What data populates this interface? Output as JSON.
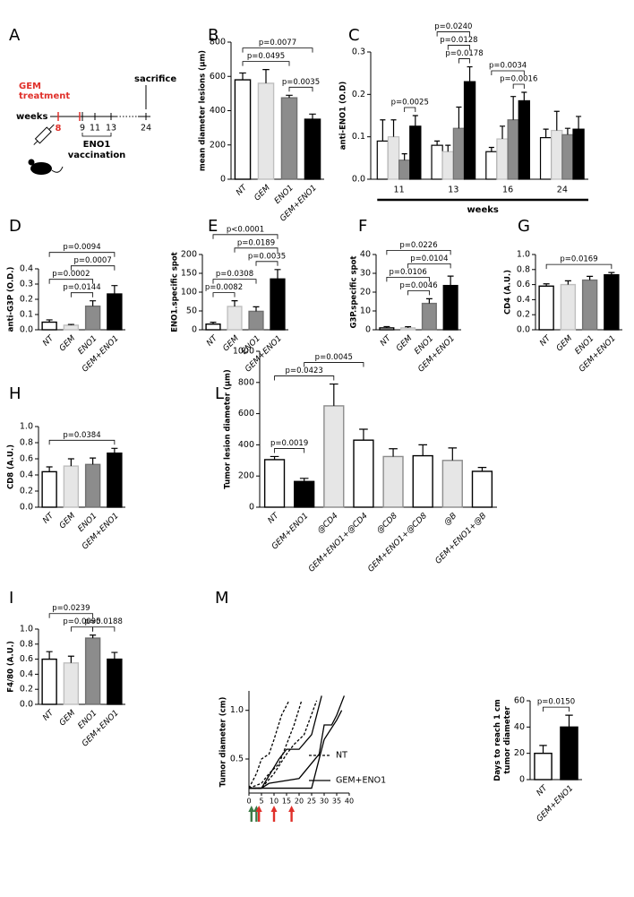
{
  "timeline": {
    "panel": "A",
    "treatment": [
      "GEM",
      "treatment"
    ],
    "end": "sacrifice",
    "axis_label": "weeks",
    "weeks": [
      8,
      9,
      11,
      13,
      24
    ],
    "vaccination": [
      "ENO1",
      "vaccination"
    ]
  },
  "chart_data": [
    {
      "type": "bar",
      "panel": "B",
      "ylabel": "mean diameter lesions (µm)",
      "categories": [
        "NT",
        "GEM",
        "ENO1",
        "GEM+ENO1"
      ],
      "values": [
        580,
        560,
        475,
        350
      ],
      "errors": [
        40,
        80,
        15,
        30
      ],
      "colors": [
        "#ffffff",
        "#e6e6e6",
        "#8c8c8c",
        "#000000"
      ],
      "edgecolors": [
        "#000000",
        "#bfbfbf",
        "#707070",
        "#000000"
      ],
      "ylim": [
        0,
        800
      ],
      "yticks": [
        0,
        200,
        400,
        600,
        800
      ],
      "comparisons": [
        {
          "pair": [
            2,
            3
          ],
          "label": "p=0.0035"
        },
        {
          "pair": [
            0,
            2
          ],
          "label": "p=0.0495"
        },
        {
          "pair": [
            0,
            3
          ],
          "label": "p=0.0077"
        }
      ]
    },
    {
      "type": "grouped_bar",
      "panel": "C",
      "ylabel": "anti-ENO1 (O.D)",
      "xlabel": "weeks",
      "categories": [
        "11",
        "13",
        "16",
        "24"
      ],
      "series": [
        {
          "color": "#ffffff",
          "edgecolor": "#000000",
          "values": [
            0.09,
            0.08,
            0.065,
            0.098
          ],
          "errors": [
            0.05,
            0.01,
            0.01,
            0.02
          ]
        },
        {
          "color": "#e6e6e6",
          "edgecolor": "#bfbfbf",
          "values": [
            0.1,
            0.065,
            0.095,
            0.115
          ],
          "errors": [
            0.04,
            0.015,
            0.03,
            0.045
          ]
        },
        {
          "color": "#8c8c8c",
          "edgecolor": "#707070",
          "values": [
            0.045,
            0.12,
            0.14,
            0.105
          ],
          "errors": [
            0.015,
            0.05,
            0.055,
            0.015
          ]
        },
        {
          "color": "#000000",
          "edgecolor": "#000000",
          "values": [
            0.125,
            0.23,
            0.185,
            0.118
          ],
          "errors": [
            0.025,
            0.035,
            0.02,
            0.03
          ]
        }
      ],
      "ylim": [
        0,
        0.3
      ],
      "yticks": [
        {
          "value": 0,
          "label": "0.0"
        },
        0.1,
        0.2,
        0.3
      ],
      "comparisons": [
        {
          "group": 0,
          "pair": [
            2,
            3
          ],
          "label": "p=0.0025"
        },
        {
          "group": 1,
          "pair": [
            2,
            3
          ],
          "label": "p=0.0178"
        },
        {
          "group": 1,
          "pair": [
            1,
            3
          ],
          "label": "p=0.0128"
        },
        {
          "group": 1,
          "pair": [
            0,
            3
          ],
          "label": "p=0.0240"
        },
        {
          "group": 2,
          "pair": [
            2,
            3
          ],
          "label": "p=0.0016"
        },
        {
          "group": 2,
          "pair": [
            0,
            3
          ],
          "label": "p=0.0034"
        }
      ]
    },
    {
      "type": "bar",
      "panel": "D",
      "ylabel": "anti-G3P (O.D.)",
      "categories": [
        "NT",
        "GEM",
        "ENO1",
        "GEM+ENO1"
      ],
      "values": [
        0.05,
        0.03,
        0.155,
        0.235
      ],
      "errors": [
        0.015,
        0.005,
        0.035,
        0.055
      ],
      "colors": [
        "#ffffff",
        "#e6e6e6",
        "#8c8c8c",
        "#000000"
      ],
      "edgecolors": [
        "#000000",
        "#bfbfbf",
        "#707070",
        "#000000"
      ],
      "ylim": [
        0,
        0.4
      ],
      "yticks": [
        {
          "value": 0,
          "label": "0.0"
        },
        0.1,
        0.2,
        0.3,
        0.4
      ],
      "comparisons": [
        {
          "pair": [
            1,
            2
          ],
          "label": "p=0.0144"
        },
        {
          "pair": [
            0,
            2
          ],
          "label": "p=0.0002"
        },
        {
          "pair": [
            1,
            3
          ],
          "label": "p=0.0007"
        },
        {
          "pair": [
            0,
            3
          ],
          "label": "p=0.0094"
        }
      ]
    },
    {
      "type": "bar",
      "panel": "E",
      "ylabel": "ENO1.specific spot",
      "categories": [
        "NT",
        "GEM",
        "ENO1",
        "GEM+ENO1"
      ],
      "values": [
        15,
        62,
        49,
        135
      ],
      "errors": [
        5,
        15,
        12,
        25
      ],
      "colors": [
        "#ffffff",
        "#e6e6e6",
        "#8c8c8c",
        "#000000"
      ],
      "edgecolors": [
        "#000000",
        "#bfbfbf",
        "#707070",
        "#000000"
      ],
      "ylim": [
        0,
        200
      ],
      "yticks": [
        0,
        50,
        100,
        150,
        200
      ],
      "comparisons": [
        {
          "pair": [
            0,
            1
          ],
          "label": "p=0.0082"
        },
        {
          "pair": [
            0,
            2
          ],
          "label": "p=0.0308"
        },
        {
          "pair": [
            2,
            3
          ],
          "label": "p=0.0035"
        },
        {
          "pair": [
            1,
            3
          ],
          "label": "p=0.0189"
        },
        {
          "pair": [
            0,
            3
          ],
          "label": "p<0.0001"
        }
      ]
    },
    {
      "type": "bar",
      "panel": "F",
      "ylabel": "G3P.specific spot",
      "categories": [
        "NT",
        "GEM",
        "ENO1",
        "GEM+ENO1"
      ],
      "values": [
        1,
        1,
        14,
        23.5
      ],
      "errors": [
        0.7,
        0.6,
        2.5,
        5
      ],
      "colors": [
        "#ffffff",
        "#e6e6e6",
        "#8c8c8c",
        "#000000"
      ],
      "edgecolors": [
        "#000000",
        "#bfbfbf",
        "#707070",
        "#000000"
      ],
      "ylim": [
        0,
        40
      ],
      "yticks": [
        0,
        10,
        20,
        30,
        40
      ],
      "comparisons": [
        {
          "pair": [
            1,
            2
          ],
          "label": "p=0.0046"
        },
        {
          "pair": [
            0,
            2
          ],
          "label": "p=0.0106"
        },
        {
          "pair": [
            1,
            3
          ],
          "label": "p=0.0104"
        },
        {
          "pair": [
            0,
            3
          ],
          "label": "p=0.0226"
        }
      ]
    },
    {
      "type": "bar",
      "panel": "G",
      "ylabel": "CD4 (A.U.)",
      "categories": [
        "NT",
        "GEM",
        "ENO1",
        "GEM+ENO1"
      ],
      "values": [
        0.58,
        0.6,
        0.66,
        0.73
      ],
      "errors": [
        0.03,
        0.05,
        0.05,
        0.03
      ],
      "colors": [
        "#ffffff",
        "#e6e6e6",
        "#8c8c8c",
        "#000000"
      ],
      "edgecolors": [
        "#000000",
        "#bfbfbf",
        "#707070",
        "#000000"
      ],
      "ylim": [
        0,
        1
      ],
      "yticks": [
        {
          "value": 0,
          "label": "0.0"
        },
        0.2,
        0.4,
        0.6,
        0.8,
        {
          "value": 1,
          "label": "1.0"
        }
      ],
      "comparisons": [
        {
          "pair": [
            0,
            3
          ],
          "label": "p=0.0169"
        }
      ]
    },
    {
      "type": "bar",
      "panel": "H",
      "ylabel": "CD8 (A.U.)",
      "categories": [
        "NT",
        "GEM",
        "ENO1",
        "GEM+ENO1"
      ],
      "values": [
        0.44,
        0.51,
        0.53,
        0.67
      ],
      "errors": [
        0.06,
        0.09,
        0.08,
        0.06
      ],
      "colors": [
        "#ffffff",
        "#e6e6e6",
        "#8c8c8c",
        "#000000"
      ],
      "edgecolors": [
        "#000000",
        "#bfbfbf",
        "#707070",
        "#000000"
      ],
      "ylim": [
        0,
        1
      ],
      "yticks": [
        {
          "value": 0,
          "label": "0.0"
        },
        0.2,
        0.4,
        0.6,
        0.8,
        {
          "value": 1,
          "label": "1.0"
        }
      ],
      "comparisons": [
        {
          "pair": [
            0,
            3
          ],
          "label": "p=0.0384"
        }
      ]
    },
    {
      "type": "bar",
      "panel": "L",
      "ylabel": "Tumor lesion diameter (µm)",
      "categories": [
        "NT",
        "GEM+ENO1",
        "@CD4",
        "GEM+ENO1+@CD4",
        "@CD8",
        "GEM+ENO1+@CD8",
        "@B",
        "GEM+ENO1+@B"
      ],
      "values": [
        305,
        165,
        650,
        430,
        325,
        330,
        300,
        230
      ],
      "errors": [
        20,
        20,
        140,
        70,
        50,
        70,
        80,
        25
      ],
      "colors": [
        "#ffffff",
        "#000000",
        "#e6e6e6",
        "#ffffff",
        "#e6e6e6",
        "#ffffff",
        "#e6e6e6",
        "#ffffff"
      ],
      "edgecolors": [
        "#000000",
        "#000000",
        "#8c8c8c",
        "#000000",
        "#8c8c8c",
        "#000000",
        "#8c8c8c",
        "#000000"
      ],
      "ylim": [
        0,
        1000
      ],
      "yticks": [
        0,
        200,
        400,
        600,
        800,
        1000
      ],
      "comparisons": [
        {
          "pair": [
            0,
            1
          ],
          "label": "p=0.0019"
        },
        {
          "pair": [
            0,
            2
          ],
          "label": "p=0.0423"
        },
        {
          "pair": [
            1,
            3
          ],
          "label": "p=0.0045"
        }
      ]
    },
    {
      "type": "bar",
      "panel": "I",
      "ylabel": "F4/80 (A.U.)",
      "categories": [
        "NT",
        "GEM",
        "ENO1",
        "GEM+ENO1"
      ],
      "values": [
        0.6,
        0.55,
        0.88,
        0.6
      ],
      "errors": [
        0.1,
        0.09,
        0.04,
        0.09
      ],
      "colors": [
        "#ffffff",
        "#e6e6e6",
        "#8c8c8c",
        "#000000"
      ],
      "edgecolors": [
        "#000000",
        "#bfbfbf",
        "#707070",
        "#000000"
      ],
      "ylim": [
        0,
        1
      ],
      "yticks": [
        {
          "value": 0,
          "label": "0.0"
        },
        0.2,
        0.4,
        0.6,
        0.8,
        {
          "value": 1,
          "label": "1.0"
        }
      ],
      "comparisons": [
        {
          "pair": [
            1,
            2
          ],
          "label": "p=0.0095"
        },
        {
          "pair": [
            0,
            2
          ],
          "label": "p=0.0239"
        },
        {
          "pair": [
            2,
            3
          ],
          "label": "p=0.0188"
        }
      ]
    },
    {
      "type": "line",
      "panel": "M",
      "ylabel": "Tumor diameter (cm)",
      "xlim": [
        0,
        40
      ],
      "xticks": [
        0,
        5,
        10,
        15,
        20,
        25,
        30,
        35,
        40
      ],
      "ylim": [
        0.15,
        1.2
      ],
      "yticks": [
        0.5,
        {
          "value": 1,
          "label": "1.0"
        }
      ],
      "legend": "lower right",
      "groups": [
        {
          "name": "NT",
          "color": "#000000",
          "dashed": true,
          "lines": [
            {
              "x": [
                0,
                3,
                5,
                8,
                10,
                13,
                16
              ],
              "values": [
                0.2,
                0.35,
                0.5,
                0.55,
                0.7,
                0.95,
                1.1
              ]
            },
            {
              "x": [
                0,
                5,
                8,
                12,
                15,
                18,
                21
              ],
              "values": [
                0.2,
                0.25,
                0.35,
                0.45,
                0.65,
                0.85,
                1.1
              ]
            },
            {
              "x": [
                0,
                5,
                10,
                15,
                18,
                22,
                27
              ],
              "values": [
                0.2,
                0.2,
                0.35,
                0.55,
                0.65,
                0.75,
                1.1
              ]
            }
          ]
        },
        {
          "name": "GEM+ENO1",
          "color": "#000000",
          "dashed": false,
          "lines": [
            {
              "x": [
                0,
                5,
                12,
                15,
                20,
                25,
                29
              ],
              "values": [
                0.2,
                0.2,
                0.5,
                0.6,
                0.6,
                0.75,
                1.15
              ]
            },
            {
              "x": [
                0,
                5,
                8,
                20,
                28,
                30,
                33,
                35,
                38
              ],
              "values": [
                0.2,
                0.2,
                0.25,
                0.3,
                0.55,
                0.85,
                0.85,
                0.95,
                1.15
              ]
            },
            {
              "x": [
                0,
                5,
                10,
                20,
                25,
                30,
                35,
                37
              ],
              "values": [
                0.2,
                0.2,
                0.2,
                0.2,
                0.2,
                0.7,
                0.9,
                1.0
              ]
            }
          ]
        }
      ],
      "arrows": [
        {
          "x": 1,
          "color": "#3d7a47"
        },
        {
          "x": 3,
          "color": "#3d7a47"
        },
        {
          "x": 4,
          "color": "#e0302a"
        },
        {
          "x": 10,
          "color": "#e0302a"
        },
        {
          "x": 17,
          "color": "#e0302a"
        }
      ]
    },
    {
      "type": "bar",
      "ylabel": [
        "Days to reach 1 cm",
        "tumor diameter"
      ],
      "categories": [
        "NT",
        "GEM+ENO1"
      ],
      "values": [
        20,
        40
      ],
      "errors": [
        6,
        9
      ],
      "colors": [
        "#ffffff",
        "#000000"
      ],
      "edgecolors": [
        "#000000",
        "#000000"
      ],
      "ylim": [
        0,
        60
      ],
      "yticks": [
        0,
        20,
        40,
        60
      ],
      "comparisons": [
        {
          "pair": [
            0,
            1
          ],
          "label": "p=0.0150"
        }
      ]
    }
  ]
}
